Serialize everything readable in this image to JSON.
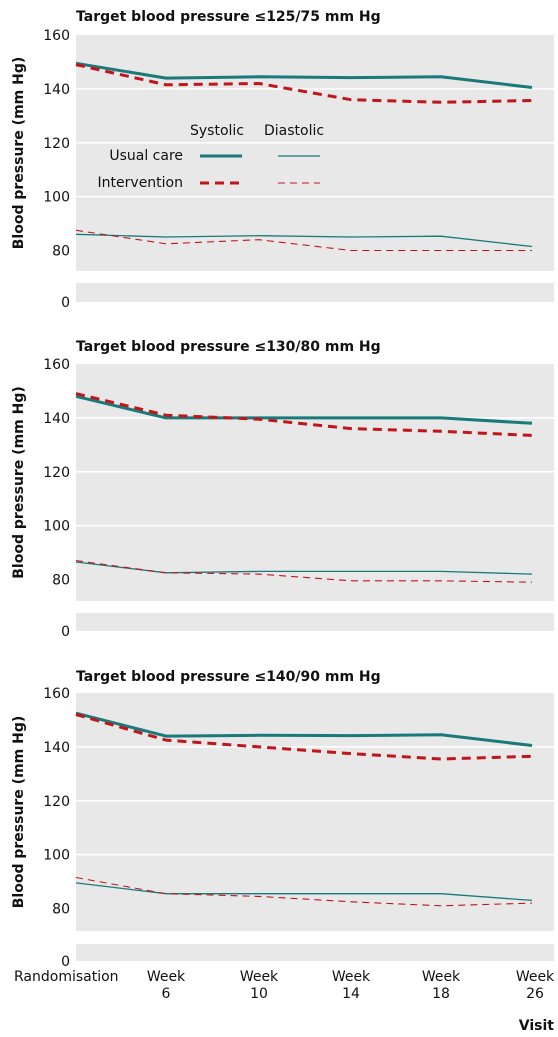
{
  "chart_data": [
    {
      "type": "line",
      "title": "Target blood pressure ≤125/75 mm Hg",
      "ylabel": "Blood pressure (mm Hg)",
      "yticks": [
        "0",
        "80",
        "100",
        "120",
        "140",
        "160"
      ],
      "ylim": [
        72,
        160
      ],
      "axis_break": true,
      "categories": [
        "Randomisation",
        "Week 6",
        "Week 10",
        "Week 14",
        "Week 18",
        "Week 26"
      ],
      "series": [
        {
          "name": "Usual care",
          "measure": "Systolic",
          "values": [
            149.5,
            144,
            144.5,
            144.2,
            144.5,
            140.5
          ]
        },
        {
          "name": "Intervention",
          "measure": "Systolic",
          "values": [
            149,
            141.5,
            142,
            136,
            135,
            135.7
          ]
        },
        {
          "name": "Usual care",
          "measure": "Diastolic",
          "values": [
            86,
            85,
            85.5,
            85,
            85.3,
            81.5
          ]
        },
        {
          "name": "Intervention",
          "measure": "Diastolic",
          "values": [
            87.5,
            82.5,
            84,
            80,
            80,
            80
          ]
        }
      ]
    },
    {
      "type": "line",
      "title": "Target blood pressure ≤130/80 mm Hg",
      "ylabel": "Blood pressure (mm Hg)",
      "yticks": [
        "0",
        "80",
        "100",
        "120",
        "140",
        "160"
      ],
      "ylim": [
        72,
        160
      ],
      "axis_break": true,
      "categories": [
        "Randomisation",
        "Week 6",
        "Week 10",
        "Week 14",
        "Week 18",
        "Week 26"
      ],
      "series": [
        {
          "name": "Usual care",
          "measure": "Systolic",
          "values": [
            148,
            140,
            140,
            140,
            140,
            138
          ]
        },
        {
          "name": "Intervention",
          "measure": "Systolic",
          "values": [
            149,
            141,
            139.5,
            136,
            135,
            133.5
          ]
        },
        {
          "name": "Usual care",
          "measure": "Diastolic",
          "values": [
            86.5,
            82.5,
            83,
            83,
            83,
            82
          ]
        },
        {
          "name": "Intervention",
          "measure": "Diastolic",
          "values": [
            87,
            82.5,
            82,
            79.5,
            79.5,
            79
          ]
        }
      ]
    },
    {
      "type": "line",
      "title": "Target blood pressure ≤140/90 mm Hg",
      "ylabel": "Blood pressure (mm Hg)",
      "yticks": [
        "0",
        "80",
        "100",
        "120",
        "140",
        "160"
      ],
      "ylim": [
        72,
        160
      ],
      "axis_break": true,
      "categories": [
        "Randomisation",
        "Week 6",
        "Week 10",
        "Week 14",
        "Week 18",
        "Week 26"
      ],
      "series": [
        {
          "name": "Usual care",
          "measure": "Systolic",
          "values": [
            152.5,
            144,
            144.3,
            144.2,
            144.5,
            140.5
          ]
        },
        {
          "name": "Intervention",
          "measure": "Systolic",
          "values": [
            152,
            142.5,
            140,
            137.5,
            135.5,
            136.5
          ]
        },
        {
          "name": "Usual care",
          "measure": "Diastolic",
          "values": [
            89.5,
            85.5,
            85.5,
            85.5,
            85.5,
            83
          ]
        },
        {
          "name": "Intervention",
          "measure": "Diastolic",
          "values": [
            91.5,
            85.5,
            84.5,
            82.5,
            81,
            82
          ]
        }
      ]
    }
  ],
  "legend": {
    "column_headers": [
      "Systolic",
      "Diastolic"
    ],
    "rows": [
      "Usual care",
      "Intervention"
    ],
    "placement": "inside first panel, centre-left"
  },
  "x_axis": {
    "tick_labels": [
      [
        "Randomisation"
      ],
      [
        "Week",
        "6"
      ],
      [
        "Week",
        "10"
      ],
      [
        "Week",
        "14"
      ],
      [
        "Week",
        "18"
      ],
      [
        "Week",
        "26"
      ]
    ],
    "title": "Visit"
  },
  "colors": {
    "usual_care": "#1a7a7a",
    "intervention": "#c0161b",
    "panel_background": "#e8e8e8",
    "gridline": "#ffffff"
  }
}
